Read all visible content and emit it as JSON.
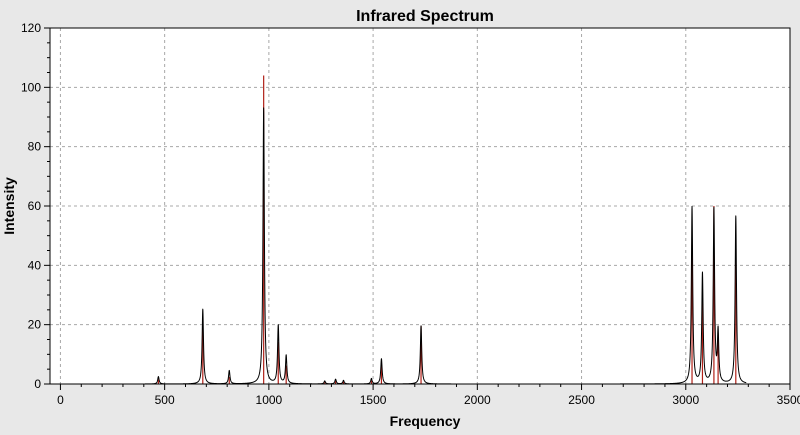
{
  "chart_data": {
    "type": "line",
    "title": "Infrared Spectrum",
    "xlabel": "Frequency",
    "ylabel": "Intensity",
    "xlim": [
      -50,
      3500
    ],
    "ylim": [
      0,
      120
    ],
    "x_ticks": [
      0,
      500,
      1000,
      1500,
      2000,
      2500,
      3000,
      3500
    ],
    "x_tick_labels": [
      "0",
      "500",
      "1000",
      "1500",
      "2000",
      "2500",
      "3000",
      "3500"
    ],
    "y_ticks": [
      0,
      20,
      40,
      60,
      80,
      100,
      120
    ],
    "y_tick_labels": [
      "0",
      "20",
      "40",
      "60",
      "80",
      "100",
      "120"
    ],
    "grid": true,
    "legend": false,
    "colors": {
      "spectrum": "#000000",
      "sticks": "#b02018",
      "plot_background": "#ffffff",
      "grid": "#a8a8a8",
      "frame_background": "#e8e8e8"
    },
    "series": [
      {
        "style": "stick",
        "x": [
          470,
          683,
          810,
          975,
          1045,
          1083,
          1268,
          1320,
          1358,
          1492,
          1540,
          1730,
          3030,
          3080,
          3135,
          3155,
          3240
        ],
        "values": [
          1.6,
          20.0,
          2.4,
          104.0,
          14.2,
          6.2,
          0.6,
          1.0,
          0.8,
          1.2,
          7.0,
          19.6,
          47.0,
          29.0,
          60.0,
          17.0,
          43.0
        ]
      },
      {
        "style": "broadened-line",
        "half_width": 4,
        "peaks_x": [
          470,
          683,
          810,
          975,
          1045,
          1083,
          1268,
          1320,
          1358,
          1492,
          1540,
          1730,
          3030,
          3080,
          3135,
          3155,
          3240
        ],
        "peaks_y": [
          2.5,
          25.2,
          4.5,
          93.0,
          19.6,
          9.5,
          1.0,
          1.6,
          1.2,
          1.8,
          8.5,
          19.6,
          59.5,
          37.0,
          58.5,
          17.0,
          56.5
        ]
      }
    ]
  }
}
